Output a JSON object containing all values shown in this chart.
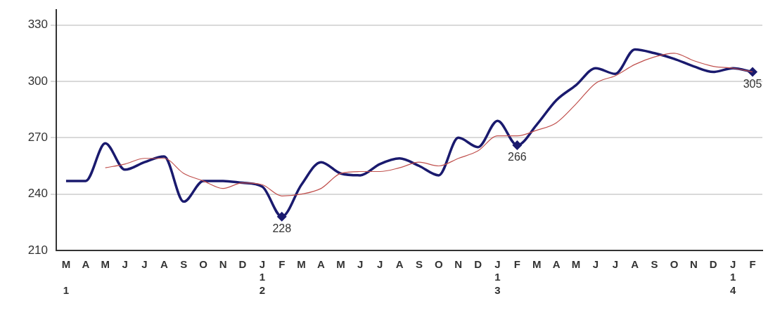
{
  "chart_data": {
    "type": "line",
    "categories": [
      "M\n\n1",
      "A",
      "M",
      "J",
      "J",
      "A",
      "S",
      "O",
      "N",
      "D",
      "J\n1\n2",
      "F",
      "M",
      "A",
      "M",
      "J",
      "J",
      "A",
      "S",
      "O",
      "N",
      "D",
      "J\n1\n3",
      "F",
      "M",
      "A",
      "M",
      "J",
      "J",
      "A",
      "S",
      "O",
      "N",
      "D",
      "J\n1\n4",
      "F"
    ],
    "series": [
      {
        "color": "#c0504d",
        "values": [
          null,
          null,
          254,
          256,
          259,
          259,
          251,
          247,
          243,
          246,
          245,
          239,
          240,
          243,
          251,
          252,
          252,
          254,
          257,
          255,
          259,
          263,
          271,
          271,
          274,
          278,
          288,
          299,
          303,
          309,
          313,
          315,
          311,
          308,
          307,
          305
        ]
      },
      {
        "color": "#1a1a6e",
        "values": [
          247,
          247,
          267,
          253,
          257,
          260,
          236,
          247,
          247,
          246,
          244,
          228,
          245,
          257,
          251,
          250,
          256,
          259,
          255,
          250,
          270,
          265,
          279,
          266,
          277,
          290,
          298,
          307,
          304,
          317,
          315,
          312,
          308,
          305,
          307,
          305
        ]
      },
      {
        "type": "scatter",
        "color": "#1a1a6e",
        "marker": "diamond",
        "values": [
          null,
          null,
          null,
          null,
          null,
          null,
          null,
          null,
          null,
          null,
          null,
          228,
          null,
          null,
          null,
          null,
          null,
          null,
          null,
          null,
          null,
          null,
          null,
          266,
          null,
          null,
          null,
          null,
          null,
          null,
          null,
          null,
          null,
          null,
          null,
          305
        ],
        "value_labels": [
          null,
          null,
          null,
          null,
          null,
          null,
          null,
          null,
          null,
          null,
          null,
          "228",
          null,
          null,
          null,
          null,
          null,
          null,
          null,
          null,
          null,
          null,
          null,
          "266",
          null,
          null,
          null,
          null,
          null,
          null,
          null,
          null,
          null,
          null,
          null,
          "305"
        ]
      }
    ],
    "ylim": [
      210,
      338
    ],
    "yticks": [
      210,
      240,
      270,
      300,
      330
    ],
    "grid": "y",
    "legend": false
  }
}
